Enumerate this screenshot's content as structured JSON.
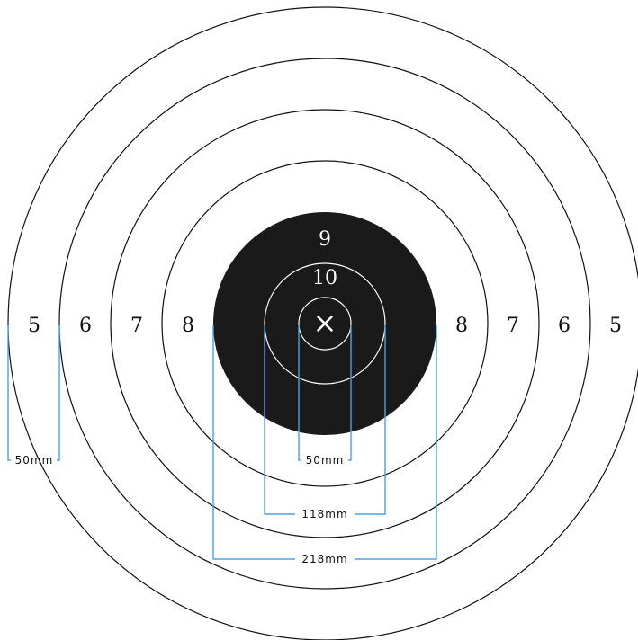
{
  "target": {
    "ring_numbers": {
      "outer_left": "5",
      "ring6_left": "6",
      "ring7_left": "7",
      "ring8_left": "8",
      "ring8_right": "8",
      "ring7_right": "7",
      "ring6_right": "6",
      "outer_right": "5",
      "ring9": "9",
      "ring10": "10"
    },
    "center_mark": "x-mark",
    "colors": {
      "black_area": "#1a1a1a",
      "rings": "#111111",
      "dimension_lines": "#4aa3df",
      "background": "#ffffff"
    }
  },
  "dimensions": {
    "ring_spacing": "50mm",
    "inner_ring": "50mm",
    "ten_ring": "118mm",
    "black_area": "218mm"
  }
}
